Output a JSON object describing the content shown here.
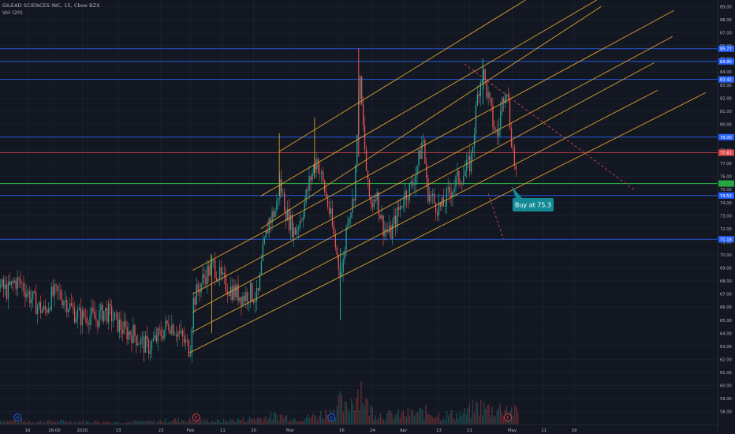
{
  "header": {
    "symbol_title": "GILEAD SCIENCES INC, 15, Cboe BZX",
    "volume_indicator": "Vol (20)"
  },
  "chart_data": {
    "type": "candlestick",
    "symbol": "GILEAD SCIENCES INC",
    "interval": "15",
    "exchange": "Cboe BZX",
    "y_range": [
      57.0,
      89.5
    ],
    "y_ticks": [
      58,
      59,
      60,
      61,
      62,
      63,
      64,
      65,
      66,
      67,
      68,
      69,
      70,
      71,
      72,
      73,
      74,
      75,
      76,
      77,
      78,
      79,
      80,
      81,
      82,
      83,
      84,
      85,
      86,
      87,
      88,
      89
    ],
    "y_tick_labels": [
      "58.00",
      "59.00",
      "60.00",
      "61.00",
      "62.00",
      "63.00",
      "64.00",
      "65.00",
      "66.00",
      "67.00",
      "68.00",
      "69.00",
      "70.00",
      "71.00",
      "72.00",
      "73.00",
      "74.00",
      "75.00",
      "76.00",
      "77.00",
      "78.00",
      "79.00",
      "80.00",
      "81.00",
      "82.00",
      "83.00",
      "84.00",
      "85.00",
      "86.00",
      "87.00",
      "88.00",
      "89.00"
    ],
    "x_ticks": [
      {
        "label": "16",
        "x": 0.0375
      },
      {
        "label": "16:00",
        "x": 0.074
      },
      {
        "label": "2020",
        "x": 0.112
      },
      {
        "label": "13",
        "x": 0.161
      },
      {
        "label": "22",
        "x": 0.219
      },
      {
        "label": "Feb",
        "x": 0.259
      },
      {
        "label": "11",
        "x": 0.303
      },
      {
        "label": "20",
        "x": 0.345
      },
      {
        "label": "Mar",
        "x": 0.395
      },
      {
        "label": "16",
        "x": 0.465
      },
      {
        "label": "24",
        "x": 0.507
      },
      {
        "label": "Apr",
        "x": 0.549
      },
      {
        "label": "13",
        "x": 0.597
      },
      {
        "label": "21",
        "x": 0.639
      },
      {
        "label": "May",
        "x": 0.697
      },
      {
        "label": "11",
        "x": 0.74
      },
      {
        "label": "19",
        "x": 0.781
      }
    ],
    "price_series_close": [
      [
        0.0,
        67.5
      ],
      [
        0.01,
        67.2
      ],
      [
        0.02,
        68.0
      ],
      [
        0.03,
        67.7
      ],
      [
        0.04,
        66.8
      ],
      [
        0.05,
        66.1
      ],
      [
        0.06,
        65.6
      ],
      [
        0.07,
        66.9
      ],
      [
        0.08,
        67.0
      ],
      [
        0.09,
        66.4
      ],
      [
        0.1,
        65.6
      ],
      [
        0.11,
        65.2
      ],
      [
        0.12,
        65.4
      ],
      [
        0.13,
        65.0
      ],
      [
        0.14,
        65.7
      ],
      [
        0.15,
        65.4
      ],
      [
        0.16,
        64.7
      ],
      [
        0.17,
        64.1
      ],
      [
        0.18,
        64.0
      ],
      [
        0.19,
        63.4
      ],
      [
        0.2,
        62.9
      ],
      [
        0.21,
        63.4
      ],
      [
        0.22,
        64.1
      ],
      [
        0.23,
        64.8
      ],
      [
        0.24,
        64.2
      ],
      [
        0.25,
        63.3
      ],
      [
        0.258,
        62.8
      ],
      [
        0.262,
        66.4
      ],
      [
        0.27,
        67.5
      ],
      [
        0.28,
        68.6
      ],
      [
        0.29,
        69.2
      ],
      [
        0.3,
        68.1
      ],
      [
        0.31,
        67.5
      ],
      [
        0.32,
        67.1
      ],
      [
        0.33,
        66.8
      ],
      [
        0.34,
        67.1
      ],
      [
        0.35,
        66.6
      ],
      [
        0.357,
        70.1
      ],
      [
        0.365,
        72.6
      ],
      [
        0.375,
        73.5
      ],
      [
        0.38,
        75.5
      ],
      [
        0.39,
        73.0
      ],
      [
        0.4,
        71.7
      ],
      [
        0.41,
        73.1
      ],
      [
        0.42,
        75.5
      ],
      [
        0.43,
        77.4
      ],
      [
        0.44,
        75.2
      ],
      [
        0.45,
        72.6
      ],
      [
        0.46,
        69.2
      ],
      [
        0.465,
        68.6
      ],
      [
        0.472,
        73.0
      ],
      [
        0.48,
        74.1
      ],
      [
        0.485,
        78.5
      ],
      [
        0.488,
        84.0
      ],
      [
        0.493,
        80.0
      ],
      [
        0.5,
        74.8
      ],
      [
        0.505,
        73.7
      ],
      [
        0.51,
        75.0
      ],
      [
        0.52,
        72.2
      ],
      [
        0.53,
        71.5
      ],
      [
        0.54,
        73.1
      ],
      [
        0.55,
        74.6
      ],
      [
        0.56,
        75.3
      ],
      [
        0.57,
        77.5
      ],
      [
        0.575,
        79.1
      ],
      [
        0.58,
        75.0
      ],
      [
        0.59,
        74.0
      ],
      [
        0.6,
        73.5
      ],
      [
        0.61,
        74.7
      ],
      [
        0.62,
        75.6
      ],
      [
        0.63,
        76.2
      ],
      [
        0.64,
        77.1
      ],
      [
        0.65,
        82.7
      ],
      [
        0.656,
        84.1
      ],
      [
        0.662,
        82.4
      ],
      [
        0.67,
        80.1
      ],
      [
        0.676,
        79.0
      ],
      [
        0.682,
        81.5
      ],
      [
        0.688,
        83.4
      ],
      [
        0.694,
        79.5
      ],
      [
        0.699,
        77.2
      ],
      [
        0.703,
        75.6
      ]
    ],
    "volume_series": [
      [
        0.0,
        0.1
      ],
      [
        0.05,
        0.07
      ],
      [
        0.1,
        0.08
      ],
      [
        0.15,
        0.06
      ],
      [
        0.2,
        0.07
      ],
      [
        0.25,
        0.12
      ],
      [
        0.3,
        0.08
      ],
      [
        0.35,
        0.15
      ],
      [
        0.38,
        0.22
      ],
      [
        0.4,
        0.14
      ],
      [
        0.42,
        0.18
      ],
      [
        0.45,
        0.3
      ],
      [
        0.46,
        0.55
      ],
      [
        0.47,
        0.35
      ],
      [
        0.49,
        0.95
      ],
      [
        0.5,
        0.4
      ],
      [
        0.52,
        0.22
      ],
      [
        0.55,
        0.25
      ],
      [
        0.58,
        0.3
      ],
      [
        0.6,
        0.22
      ],
      [
        0.63,
        0.25
      ],
      [
        0.65,
        0.45
      ],
      [
        0.67,
        0.35
      ],
      [
        0.69,
        0.42
      ],
      [
        0.7,
        0.3
      ]
    ],
    "horizontal_levels": [
      {
        "price": 85.77,
        "label": "85.77",
        "color": "#2962ff"
      },
      {
        "price": 84.8,
        "label": "84.80",
        "color": "#2962ff"
      },
      {
        "price": 83.42,
        "label": "83.42",
        "color": "#2962ff"
      },
      {
        "price": 79.0,
        "label": "79.00",
        "color": "#2962ff"
      },
      {
        "price": 77.81,
        "label": "77.81",
        "color": "#e0484c"
      },
      {
        "price": 75.45,
        "label": "",
        "color": "#27a744"
      },
      {
        "price": 74.53,
        "label": "74.53",
        "color": "#2962ff"
      },
      {
        "price": 71.18,
        "label": "71.18",
        "color": "#2962ff"
      }
    ],
    "channel_lines": [
      {
        "from": [
          0.258,
          62.5
        ],
        "to": [
          0.96,
          82.4
        ]
      },
      {
        "from": [
          0.262,
          64.1
        ],
        "to": [
          0.895,
          82.6
        ]
      },
      {
        "from": [
          0.262,
          65.6
        ],
        "to": [
          0.89,
          84.7
        ]
      },
      {
        "from": [
          0.262,
          67.0
        ],
        "to": [
          0.915,
          86.7
        ]
      },
      {
        "from": [
          0.262,
          68.8
        ],
        "to": [
          0.917,
          88.7
        ]
      },
      {
        "from": [
          0.355,
          72.0
        ],
        "to": [
          0.818,
          89.0
        ]
      },
      {
        "from": [
          0.355,
          74.5
        ],
        "to": [
          0.812,
          89.5
        ]
      },
      {
        "from": [
          0.38,
          77.9
        ],
        "to": [
          0.715,
          89.5
        ]
      }
    ],
    "verticals": [
      {
        "x": 0.288,
        "from": 64.0,
        "to": 70.0
      },
      {
        "x": 0.38,
        "from": 74.5,
        "to": 79.3
      },
      {
        "x": 0.428,
        "from": 75.8,
        "to": 80.5
      }
    ],
    "dashed_lines": [
      {
        "from": [
          0.632,
          84.6
        ],
        "to": [
          0.862,
          75.0
        ],
        "color": "#e0484c"
      },
      {
        "from": [
          0.664,
          74.7
        ],
        "to": [
          0.685,
          71.2
        ],
        "color": "#e0484c"
      }
    ],
    "callout": {
      "text": "Buy at 75.3",
      "price": 75.3
    },
    "event_markers": [
      {
        "x": 0.024,
        "letter": "D",
        "color": "#2962ff"
      },
      {
        "x": 0.267,
        "letter": "E",
        "color": "#e0484c"
      },
      {
        "x": 0.451,
        "letter": "D",
        "color": "#2962ff"
      },
      {
        "x": 0.691,
        "letter": "E",
        "color": "#e0484c"
      }
    ],
    "colors": {
      "background": "#131722",
      "grid": "#1f2433",
      "up_candle": "#26a69a",
      "down_candle": "#ef5350",
      "channel": "#d9a12b",
      "axis_text": "#b2b5be",
      "callout_bg": "#138b96"
    }
  }
}
